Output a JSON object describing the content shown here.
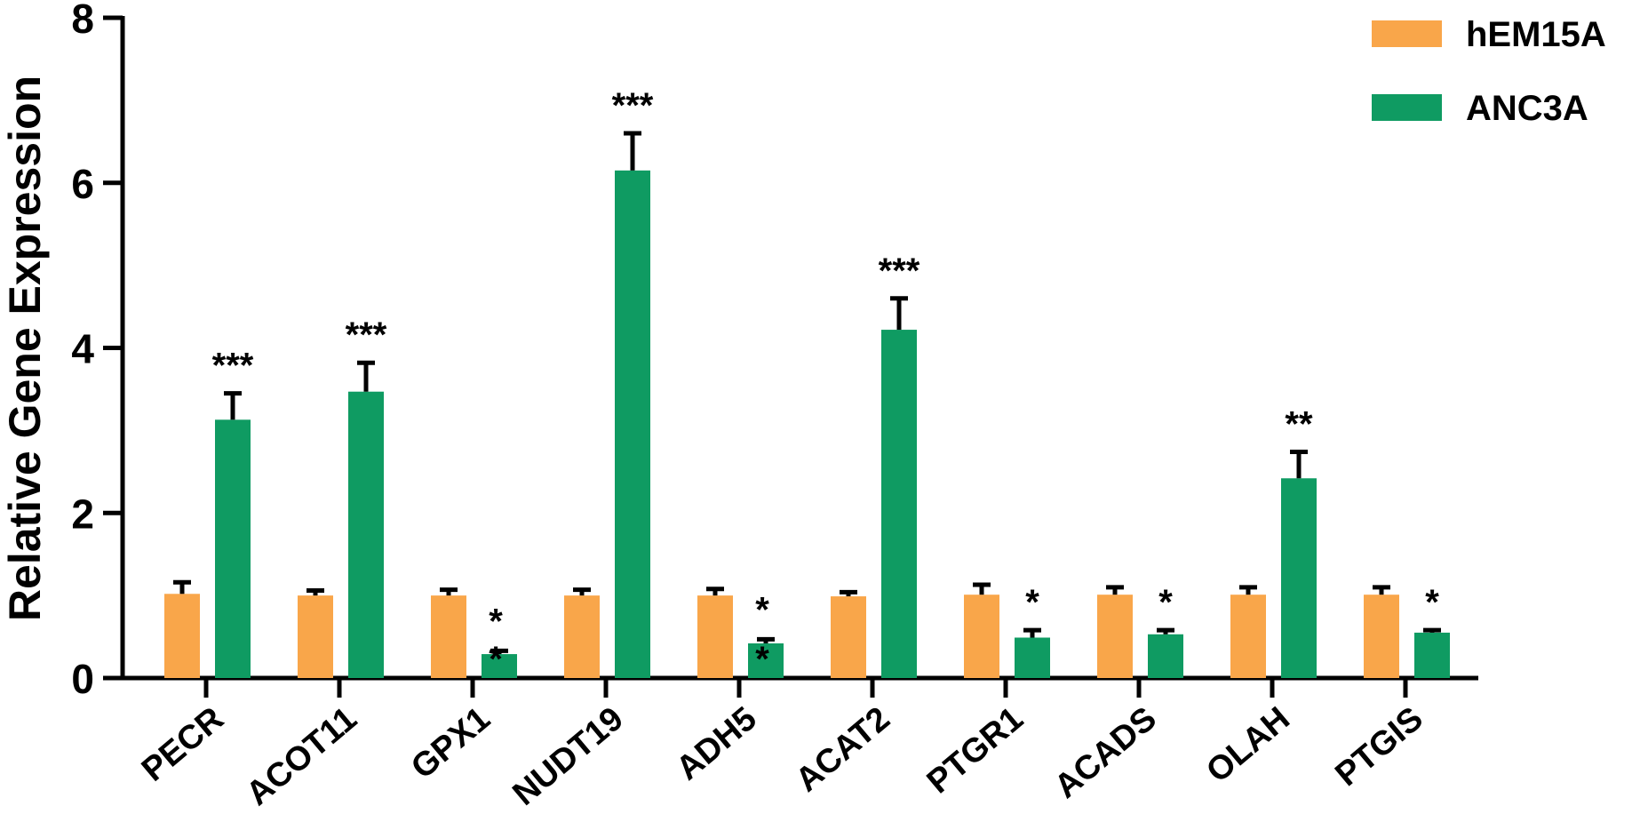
{
  "chart_data": {
    "type": "bar",
    "title": "",
    "xlabel": "",
    "ylabel": "Relative Gene Expression",
    "ylim": [
      0,
      8
    ],
    "yticks": [
      0,
      2,
      4,
      6,
      8
    ],
    "grid": false,
    "legend_position": "top-right",
    "categories": [
      "PECR",
      "ACOT11",
      "GPX1",
      "NUDT19",
      "ADH5",
      "ACAT2",
      "PTGR1",
      "ACADS",
      "OLAH",
      "PTGIS"
    ],
    "series": [
      {
        "name": "hEM15A",
        "color": "#F9A64A",
        "values": [
          1.02,
          1.0,
          1.0,
          1.0,
          1.0,
          0.99,
          1.01,
          1.01,
          1.01,
          1.01
        ],
        "errors": [
          0.14,
          0.06,
          0.07,
          0.07,
          0.08,
          0.05,
          0.12,
          0.09,
          0.09,
          0.09
        ]
      },
      {
        "name": "ANC3A",
        "color": "#0F9B62",
        "values": [
          3.13,
          3.47,
          0.29,
          6.15,
          0.42,
          4.22,
          0.49,
          0.53,
          2.42,
          0.55
        ],
        "errors": [
          0.32,
          0.35,
          0.04,
          0.45,
          0.05,
          0.38,
          0.09,
          0.05,
          0.32,
          0.03
        ],
        "significance": [
          "***",
          "***",
          "*\n*",
          "***",
          "*\n*",
          "***",
          "*",
          "*",
          "**",
          "*"
        ]
      }
    ]
  }
}
